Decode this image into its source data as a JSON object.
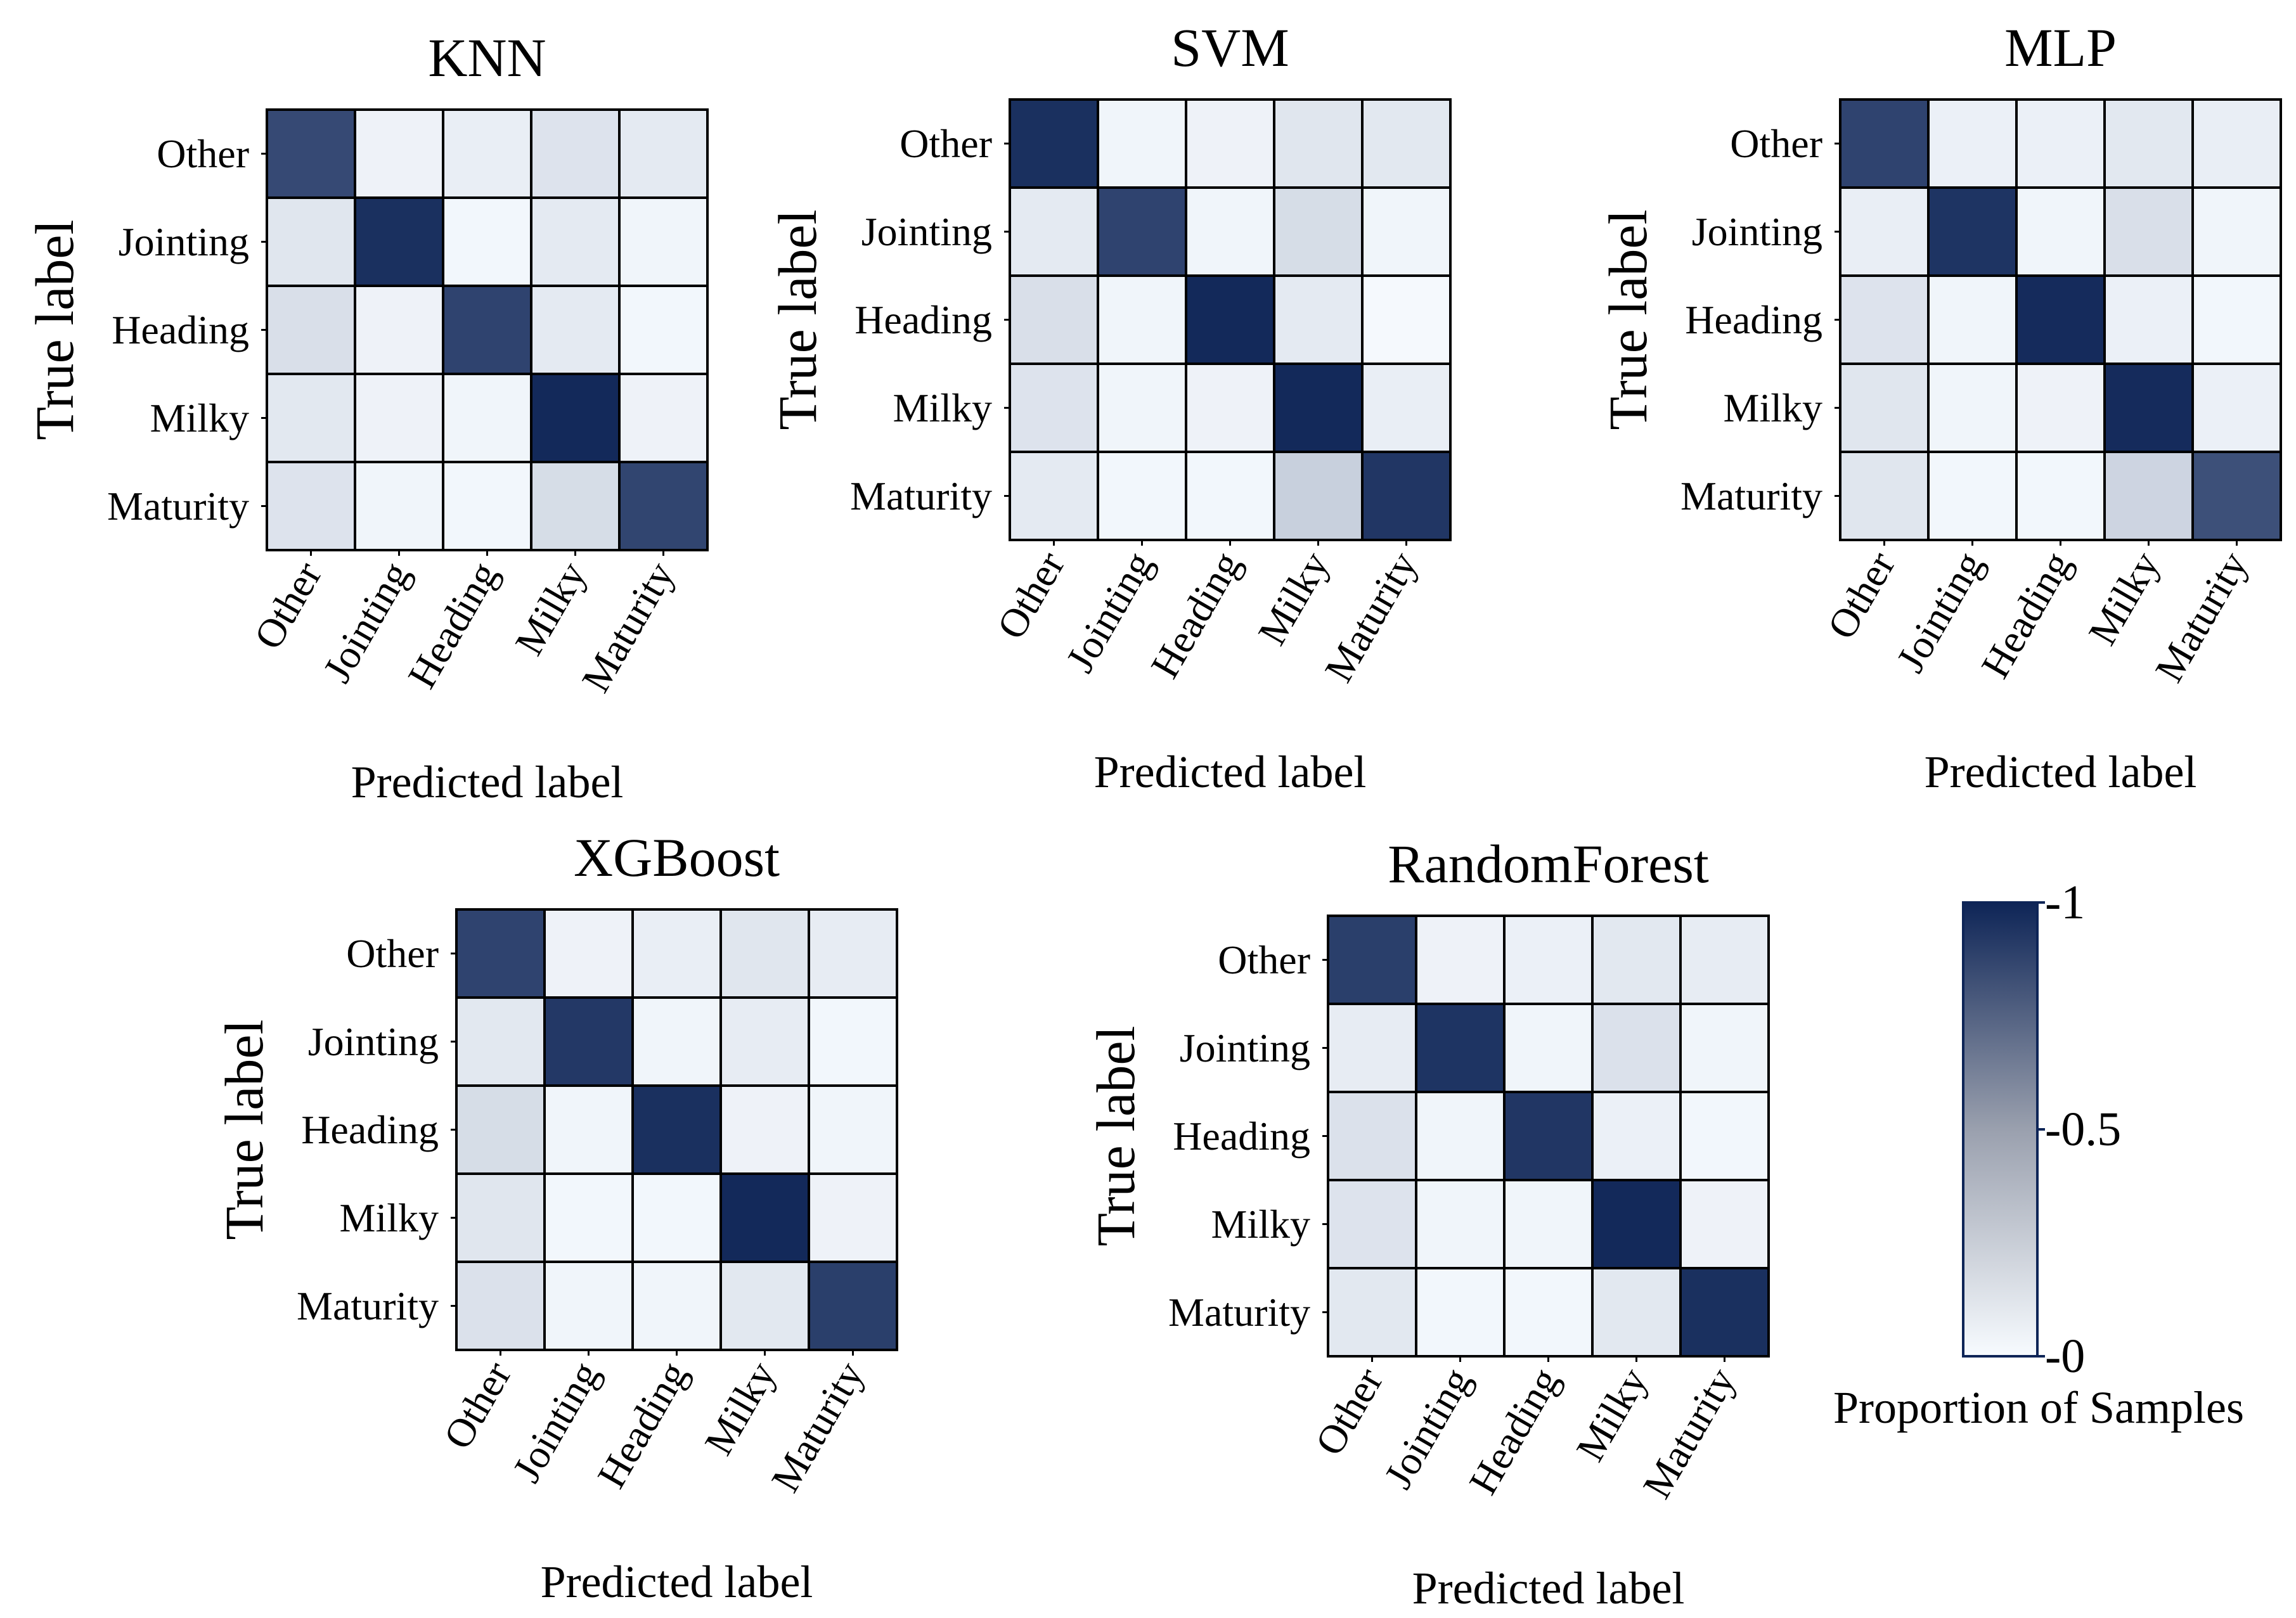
{
  "chart_data": [
    {
      "type": "heatmap",
      "title": "KNN",
      "xlabel": "Predicted label",
      "ylabel": "True label",
      "categories": [
        "Other",
        "Jointing",
        "Heading",
        "Milky",
        "Maturity"
      ],
      "matrix": [
        [
          0.83,
          0.04,
          0.06,
          0.11,
          0.08
        ],
        [
          0.1,
          0.95,
          0.02,
          0.08,
          0.03
        ],
        [
          0.13,
          0.04,
          0.86,
          0.08,
          0.02
        ],
        [
          0.09,
          0.04,
          0.03,
          0.98,
          0.04
        ],
        [
          0.11,
          0.03,
          0.02,
          0.14,
          0.85
        ]
      ]
    },
    {
      "type": "heatmap",
      "title": "SVM",
      "xlabel": "Predicted label",
      "ylabel": "True label",
      "categories": [
        "Other",
        "Jointing",
        "Heading",
        "Milky",
        "Maturity"
      ],
      "matrix": [
        [
          0.95,
          0.03,
          0.04,
          0.1,
          0.09
        ],
        [
          0.08,
          0.86,
          0.03,
          0.14,
          0.03
        ],
        [
          0.13,
          0.03,
          0.98,
          0.08,
          0.01
        ],
        [
          0.11,
          0.03,
          0.04,
          0.98,
          0.06
        ],
        [
          0.08,
          0.02,
          0.02,
          0.2,
          0.92
        ]
      ]
    },
    {
      "type": "heatmap",
      "title": "MLP",
      "xlabel": "Predicted label",
      "ylabel": "True label",
      "categories": [
        "Other",
        "Jointing",
        "Heading",
        "Milky",
        "Maturity"
      ],
      "matrix": [
        [
          0.86,
          0.05,
          0.05,
          0.09,
          0.06
        ],
        [
          0.06,
          0.93,
          0.03,
          0.13,
          0.03
        ],
        [
          0.11,
          0.03,
          0.97,
          0.05,
          0.02
        ],
        [
          0.1,
          0.03,
          0.04,
          0.97,
          0.05
        ],
        [
          0.1,
          0.02,
          0.02,
          0.18,
          0.8
        ]
      ]
    },
    {
      "type": "heatmap",
      "title": "XGBoost",
      "xlabel": "Predicted label",
      "ylabel": "True label",
      "categories": [
        "Other",
        "Jointing",
        "Heading",
        "Milky",
        "Maturity"
      ],
      "matrix": [
        [
          0.86,
          0.04,
          0.06,
          0.1,
          0.07
        ],
        [
          0.09,
          0.91,
          0.03,
          0.07,
          0.02
        ],
        [
          0.14,
          0.03,
          0.95,
          0.04,
          0.03
        ],
        [
          0.1,
          0.02,
          0.02,
          0.98,
          0.04
        ],
        [
          0.12,
          0.03,
          0.03,
          0.09,
          0.88
        ]
      ]
    },
    {
      "type": "heatmap",
      "title": "RandomForest",
      "xlabel": "Predicted label",
      "ylabel": "True label",
      "categories": [
        "Other",
        "Jointing",
        "Heading",
        "Milky",
        "Maturity"
      ],
      "matrix": [
        [
          0.88,
          0.04,
          0.05,
          0.09,
          0.07
        ],
        [
          0.07,
          0.93,
          0.03,
          0.12,
          0.03
        ],
        [
          0.12,
          0.03,
          0.92,
          0.05,
          0.02
        ],
        [
          0.11,
          0.03,
          0.03,
          0.98,
          0.04
        ],
        [
          0.09,
          0.02,
          0.02,
          0.09,
          0.95
        ]
      ]
    }
  ],
  "colorbar": {
    "label": "Proportion of Samples",
    "range": [
      0,
      1
    ],
    "tick_labels": [
      "-1",
      "-0.5",
      "-0"
    ],
    "tick_values": [
      1,
      0.5,
      0
    ]
  },
  "colors": {
    "low": "#f7fbff",
    "mid": "#9aa0ae",
    "high": "#0e2557",
    "grid": "#000000"
  }
}
